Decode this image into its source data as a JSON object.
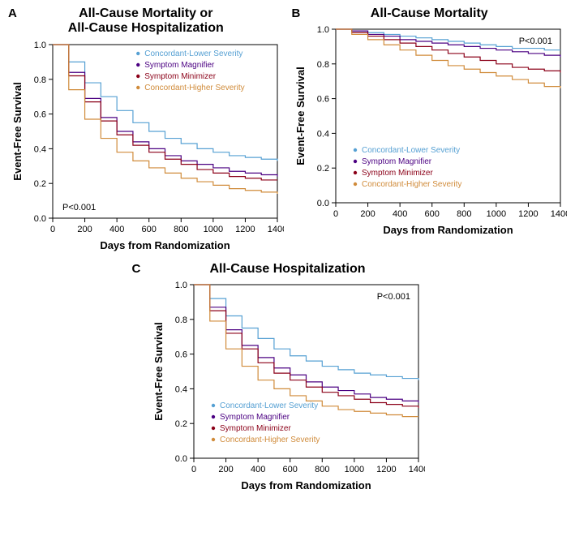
{
  "common": {
    "xlabel": "Days from Randomization",
    "ylabel": "Event-Free Survival",
    "xlim": [
      0,
      1400
    ],
    "xtick_step": 200,
    "ylabel_fontsize": 13,
    "xlabel_fontsize": 13,
    "tick_fontsize": 11,
    "legend_fontsize": 10,
    "pvalue_fontsize": 11,
    "line_width": 1.2,
    "background_color": "#ffffff",
    "axis_color": "#000000",
    "tick_color": "#000000",
    "series": [
      {
        "name": "Concordant-Lower Severity",
        "color": "#56a0d3"
      },
      {
        "name": "Symptom Magnifier",
        "color": "#4b0082"
      },
      {
        "name": "Symptom Minimizer",
        "color": "#8b0018"
      },
      {
        "name": "Concordant-Higher Severity",
        "color": "#d08b3a"
      }
    ]
  },
  "panels": {
    "A": {
      "label": "A",
      "title_line1": "All-Cause Mortality or",
      "title_line2": "All-Cause Hospitalization",
      "pvalue": "P<0.001",
      "pvalue_pos": "bottom-left",
      "legend_pos": "top-right",
      "ylim": [
        0.0,
        1.0
      ],
      "ytick_step": 0.2,
      "data_x": [
        0,
        100,
        200,
        300,
        400,
        500,
        600,
        700,
        800,
        900,
        1000,
        1100,
        1200,
        1300,
        1400
      ],
      "curves": {
        "Concordant-Lower Severity": [
          1.0,
          0.9,
          0.78,
          0.7,
          0.62,
          0.55,
          0.5,
          0.46,
          0.43,
          0.4,
          0.38,
          0.36,
          0.35,
          0.34,
          0.33
        ],
        "Symptom Magnifier": [
          1.0,
          0.84,
          0.69,
          0.58,
          0.5,
          0.44,
          0.4,
          0.36,
          0.33,
          0.31,
          0.29,
          0.27,
          0.26,
          0.25,
          0.24
        ],
        "Symptom Minimizer": [
          1.0,
          0.82,
          0.67,
          0.56,
          0.48,
          0.42,
          0.38,
          0.34,
          0.31,
          0.28,
          0.26,
          0.24,
          0.23,
          0.22,
          0.22
        ],
        "Concordant-Higher Severity": [
          1.0,
          0.74,
          0.57,
          0.46,
          0.38,
          0.33,
          0.29,
          0.26,
          0.23,
          0.21,
          0.19,
          0.17,
          0.16,
          0.15,
          0.14
        ]
      }
    },
    "B": {
      "label": "B",
      "title_line1": "All-Cause Mortality",
      "title_line2": "",
      "pvalue": "P<0.001",
      "pvalue_pos": "top-right",
      "legend_pos": "bottom-left",
      "ylim": [
        0.0,
        1.0
      ],
      "ytick_step": 0.2,
      "data_x": [
        0,
        100,
        200,
        300,
        400,
        500,
        600,
        700,
        800,
        900,
        1000,
        1100,
        1200,
        1300,
        1400
      ],
      "curves": {
        "Concordant-Lower Severity": [
          1.0,
          0.99,
          0.98,
          0.97,
          0.96,
          0.95,
          0.94,
          0.93,
          0.92,
          0.91,
          0.9,
          0.89,
          0.89,
          0.88,
          0.88
        ],
        "Symptom Magnifier": [
          1.0,
          0.99,
          0.97,
          0.96,
          0.94,
          0.93,
          0.92,
          0.91,
          0.9,
          0.89,
          0.88,
          0.87,
          0.86,
          0.85,
          0.84
        ],
        "Symptom Minimizer": [
          1.0,
          0.98,
          0.96,
          0.94,
          0.92,
          0.9,
          0.88,
          0.86,
          0.84,
          0.82,
          0.8,
          0.78,
          0.77,
          0.76,
          0.75
        ],
        "Concordant-Higher Severity": [
          1.0,
          0.97,
          0.94,
          0.91,
          0.88,
          0.85,
          0.82,
          0.79,
          0.77,
          0.75,
          0.73,
          0.71,
          0.69,
          0.67,
          0.66
        ]
      }
    },
    "C": {
      "label": "C",
      "title_line1": "All-Cause Hospitalization",
      "title_line2": "",
      "pvalue": "P<0.001",
      "pvalue_pos": "top-right",
      "legend_pos": "bottom-left",
      "ylim": [
        0.0,
        1.0
      ],
      "ytick_step": 0.2,
      "data_x": [
        0,
        100,
        200,
        300,
        400,
        500,
        600,
        700,
        800,
        900,
        1000,
        1100,
        1200,
        1300,
        1400
      ],
      "curves": {
        "Concordant-Lower Severity": [
          1.0,
          0.92,
          0.82,
          0.75,
          0.69,
          0.63,
          0.59,
          0.56,
          0.53,
          0.51,
          0.49,
          0.48,
          0.47,
          0.46,
          0.45
        ],
        "Symptom Magnifier": [
          1.0,
          0.87,
          0.74,
          0.65,
          0.58,
          0.52,
          0.48,
          0.44,
          0.41,
          0.39,
          0.37,
          0.35,
          0.34,
          0.33,
          0.32
        ],
        "Symptom Minimizer": [
          1.0,
          0.85,
          0.72,
          0.63,
          0.55,
          0.49,
          0.45,
          0.41,
          0.38,
          0.36,
          0.34,
          0.32,
          0.31,
          0.3,
          0.29
        ],
        "Concordant-Higher Severity": [
          1.0,
          0.79,
          0.63,
          0.53,
          0.45,
          0.4,
          0.36,
          0.33,
          0.3,
          0.28,
          0.27,
          0.26,
          0.25,
          0.24,
          0.24
        ]
      }
    }
  }
}
